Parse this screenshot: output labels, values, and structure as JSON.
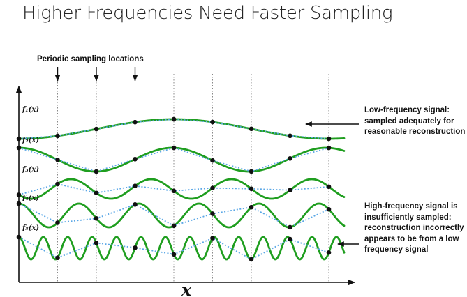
{
  "title": "Higher Frequencies Need Faster Sampling",
  "annotations": {
    "sampling": "Periodic sampling locations",
    "low": "Low-frequency signal: sampled adequately for reasonable reconstruction",
    "high": "High-frequency signal is insufficiently sampled: reconstruction incorrectly appears to be from a low frequency signal"
  },
  "axis": {
    "x_label": "x"
  },
  "signals": [
    {
      "label": "f₁(x)",
      "color": "#1f9e1f"
    },
    {
      "label": "f₂(x)",
      "color": "#1f9e1f"
    },
    {
      "label": "f₃(x)",
      "color": "#1f9e1f"
    },
    {
      "label": "f₄(x)",
      "color": "#1f9e1f"
    },
    {
      "label": "f₅(x)",
      "color": "#1f9e1f"
    }
  ],
  "colors": {
    "signal": "#1f9e1f",
    "reconstruction": "#5aa7e6",
    "sample_lines": "#888888",
    "axes": "#111111"
  }
}
